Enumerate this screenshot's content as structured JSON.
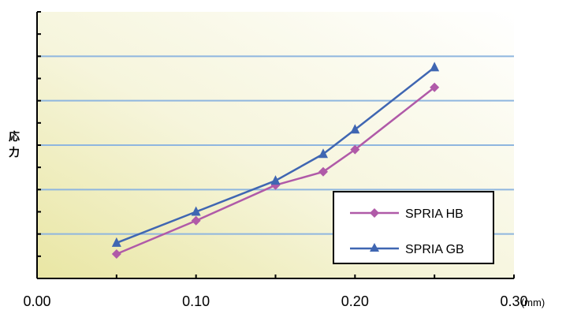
{
  "chart_data": {
    "type": "line",
    "ylabel": "応力",
    "x_unit": "(mm)",
    "xlim": [
      0.0,
      0.3
    ],
    "ylim": [
      0,
      6
    ],
    "x_ticks": [
      "0.00",
      "0.10",
      "0.20",
      "0.30"
    ],
    "x_tick_values": [
      0.0,
      0.1,
      0.2,
      0.3
    ],
    "y_gridlines": [
      1,
      2,
      3,
      4,
      5
    ],
    "grid": true,
    "legend_position": "bottom-right",
    "x": [
      0.05,
      0.1,
      0.15,
      0.18,
      0.2,
      0.25
    ],
    "series": [
      {
        "name": "SPRIA HB",
        "marker": "diamond",
        "color": "#b05aa8",
        "values": [
          0.55,
          1.3,
          2.1,
          2.4,
          2.9,
          4.3
        ]
      },
      {
        "name": "SPRIA GB",
        "marker": "triangle",
        "color": "#3f66b2",
        "values": [
          0.8,
          1.5,
          2.2,
          2.8,
          3.35,
          4.75
        ]
      }
    ]
  }
}
